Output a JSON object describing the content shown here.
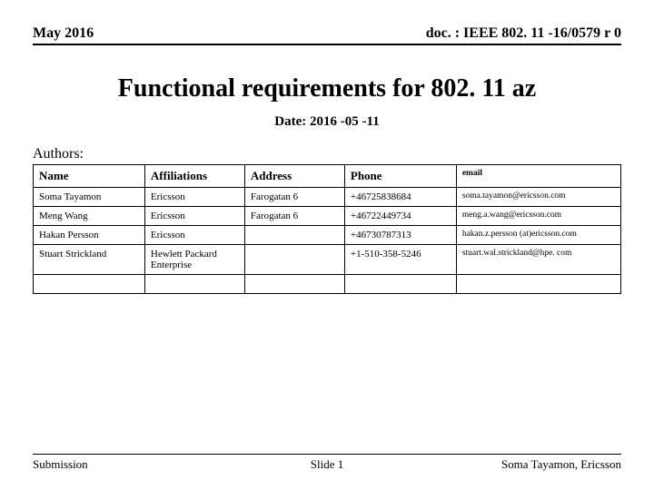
{
  "header": {
    "left": "May 2016",
    "right": "doc. : IEEE 802. 11 -16/0579 r 0"
  },
  "title": "Functional requirements for 802. 11 az",
  "date_line": "Date: 2016 -05 -11",
  "authors_label": "Authors:",
  "table": {
    "columns": [
      "Name",
      "Affiliations",
      "Address",
      "Phone",
      "email"
    ],
    "rows": [
      [
        "Soma Tayamon",
        "Ericsson",
        "Farogatan 6",
        "+46725838684",
        "soma.tayamon@ericsson.com"
      ],
      [
        "Meng Wang",
        "Ericsson",
        "Farogatan 6",
        "+46722449734",
        "meng.a.wang@ericsson.com"
      ],
      [
        "Hakan Persson",
        "Ericsson",
        "",
        "+46730787313",
        "hakan.z.persson (at)ericsson.com"
      ],
      [
        "Stuart Strickland",
        "Hewlett Packard Enterprise",
        "",
        "+1-510-358-5246",
        "stuart.wal.strickland@hpe. com"
      ],
      [
        "",
        "",
        "",
        "",
        ""
      ]
    ]
  },
  "footer": {
    "left": "Submission",
    "center": "Slide 1",
    "right": "Soma Tayamon, Ericsson"
  }
}
